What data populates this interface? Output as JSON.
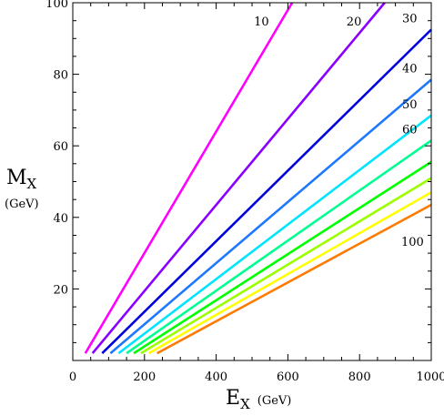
{
  "chart_data": {
    "type": "line",
    "xlabel": {
      "main": "E",
      "sub": "X",
      "unit": "(GeV)"
    },
    "ylabel": {
      "main": "M",
      "sub": "X",
      "unit": "(GeV)"
    },
    "xlim": [
      0,
      1000
    ],
    "ylim": [
      0,
      100
    ],
    "xticks": [
      0,
      200,
      400,
      600,
      800,
      1000
    ],
    "yticks": [
      20,
      40,
      60,
      80,
      100
    ],
    "grid": false,
    "series": [
      {
        "label": "10",
        "color": "#ff00ff",
        "x": [
          35,
          612
        ],
        "y": [
          2,
          100
        ]
      },
      {
        "label": "20",
        "color": "#8a00ff",
        "x": [
          55,
          870
        ],
        "y": [
          2,
          100
        ]
      },
      {
        "label": "30",
        "color": "#0000dd",
        "x": [
          82,
          1000
        ],
        "y": [
          2,
          92.5
        ]
      },
      {
        "label": "40",
        "color": "#1e78ff",
        "x": [
          105,
          1000
        ],
        "y": [
          2,
          78.5
        ]
      },
      {
        "label": "50",
        "color": "#00e5ff",
        "x": [
          128,
          1000
        ],
        "y": [
          2,
          68.5
        ]
      },
      {
        "label": "60",
        "color": "#00ff90",
        "x": [
          150,
          1000
        ],
        "y": [
          2,
          61.5
        ]
      },
      {
        "label": "",
        "color": "#00ff00",
        "x": [
          170,
          1000
        ],
        "y": [
          2,
          55.5
        ]
      },
      {
        "label": "",
        "color": "#9cff00",
        "x": [
          190,
          1000
        ],
        "y": [
          2,
          51
        ]
      },
      {
        "label": "",
        "color": "#ffff00",
        "x": [
          212,
          1000
        ],
        "y": [
          2,
          47
        ]
      },
      {
        "label": "100",
        "color": "#ff7a00",
        "x": [
          235,
          1000
        ],
        "y": [
          2,
          43.5
        ]
      }
    ]
  }
}
